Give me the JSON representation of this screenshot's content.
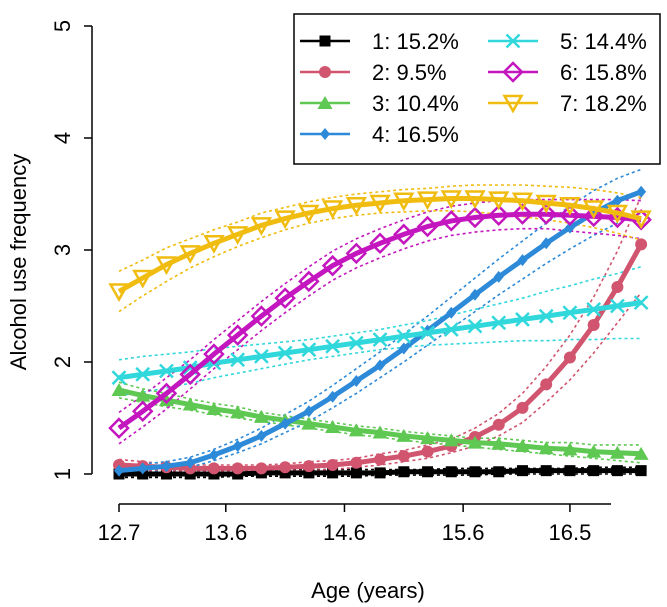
{
  "chart_data": {
    "type": "line",
    "title": "",
    "xlabel": "Age (years)",
    "ylabel": "Alcohol use frequency",
    "xlim": [
      12.7,
      17.2
    ],
    "ylim": [
      1,
      5
    ],
    "x_ticks": [
      "12.7",
      "13.6",
      "14.6",
      "15.6",
      "16.5"
    ],
    "x_tick_values": [
      12.7,
      13.6,
      14.6,
      15.6,
      16.5
    ],
    "y_ticks": [
      "1",
      "2",
      "3",
      "4",
      "5"
    ],
    "y_tick_values": [
      1,
      2,
      3,
      4,
      5
    ],
    "grid": false,
    "legend_position": "top-right",
    "x": [
      12.7,
      12.9,
      13.1,
      13.3,
      13.5,
      13.7,
      13.9,
      14.1,
      14.3,
      14.5,
      14.7,
      14.9,
      15.1,
      15.3,
      15.5,
      15.7,
      15.9,
      16.1,
      16.3,
      16.5,
      16.7,
      16.9,
      17.1
    ],
    "series": [
      {
        "name": "1: 15.2%",
        "color": "#000000",
        "marker": "square",
        "values": [
          1.0,
          1.0,
          1.0,
          1.0,
          1.0,
          1.0,
          1.01,
          1.01,
          1.01,
          1.01,
          1.01,
          1.01,
          1.02,
          1.02,
          1.02,
          1.02,
          1.02,
          1.03,
          1.03,
          1.03,
          1.03,
          1.03,
          1.03
        ],
        "lower": [
          0.97,
          0.97,
          0.97,
          0.97,
          0.97,
          0.98,
          0.98,
          0.98,
          0.98,
          0.98,
          0.98,
          0.99,
          0.99,
          0.99,
          0.99,
          0.99,
          1.0,
          1.0,
          1.0,
          1.0,
          1.0,
          1.0,
          1.0
        ],
        "upper": [
          1.03,
          1.03,
          1.03,
          1.03,
          1.03,
          1.03,
          1.03,
          1.04,
          1.04,
          1.04,
          1.04,
          1.04,
          1.04,
          1.04,
          1.05,
          1.05,
          1.05,
          1.05,
          1.05,
          1.05,
          1.06,
          1.06,
          1.06
        ]
      },
      {
        "name": "2: 9.5%",
        "color": "#d1556e",
        "marker": "circle",
        "values": [
          1.08,
          1.07,
          1.06,
          1.05,
          1.05,
          1.05,
          1.05,
          1.06,
          1.07,
          1.08,
          1.1,
          1.13,
          1.16,
          1.2,
          1.25,
          1.33,
          1.44,
          1.59,
          1.8,
          2.04,
          2.33,
          2.67,
          3.05
        ],
        "lower": [
          1.03,
          1.03,
          1.03,
          1.02,
          1.02,
          1.02,
          1.02,
          1.03,
          1.03,
          1.04,
          1.06,
          1.08,
          1.11,
          1.14,
          1.19,
          1.25,
          1.34,
          1.46,
          1.64,
          1.84,
          2.08,
          2.35,
          2.62
        ],
        "upper": [
          1.13,
          1.11,
          1.09,
          1.08,
          1.08,
          1.08,
          1.08,
          1.09,
          1.11,
          1.12,
          1.14,
          1.18,
          1.21,
          1.26,
          1.31,
          1.41,
          1.54,
          1.72,
          1.96,
          2.24,
          2.58,
          2.99,
          3.48
        ]
      },
      {
        "name": "3: 10.4%",
        "color": "#5fc853",
        "marker": "triangle",
        "values": [
          1.75,
          1.7,
          1.66,
          1.62,
          1.58,
          1.55,
          1.51,
          1.48,
          1.45,
          1.42,
          1.39,
          1.37,
          1.34,
          1.32,
          1.3,
          1.28,
          1.27,
          1.25,
          1.23,
          1.22,
          1.2,
          1.19,
          1.18
        ],
        "lower": [
          1.68,
          1.64,
          1.6,
          1.57,
          1.53,
          1.5,
          1.47,
          1.44,
          1.41,
          1.38,
          1.35,
          1.33,
          1.3,
          1.28,
          1.26,
          1.24,
          1.22,
          1.2,
          1.18,
          1.16,
          1.14,
          1.12,
          1.1
        ],
        "upper": [
          1.82,
          1.76,
          1.72,
          1.67,
          1.63,
          1.6,
          1.55,
          1.52,
          1.49,
          1.46,
          1.43,
          1.41,
          1.38,
          1.36,
          1.34,
          1.32,
          1.32,
          1.3,
          1.28,
          1.28,
          1.26,
          1.26,
          1.26
        ]
      },
      {
        "name": "4: 16.5%",
        "color": "#2d8ad8",
        "marker": "diamond",
        "values": [
          1.03,
          1.05,
          1.07,
          1.1,
          1.17,
          1.25,
          1.34,
          1.45,
          1.56,
          1.69,
          1.83,
          1.97,
          2.12,
          2.28,
          2.44,
          2.6,
          2.76,
          2.91,
          3.06,
          3.2,
          3.33,
          3.44,
          3.52
        ],
        "lower": [
          1.0,
          1.01,
          1.03,
          1.06,
          1.12,
          1.19,
          1.27,
          1.37,
          1.47,
          1.59,
          1.72,
          1.86,
          2.0,
          2.15,
          2.3,
          2.45,
          2.6,
          2.74,
          2.88,
          3.01,
          3.13,
          3.24,
          3.33
        ],
        "upper": [
          1.07,
          1.09,
          1.11,
          1.15,
          1.22,
          1.31,
          1.41,
          1.53,
          1.65,
          1.79,
          1.94,
          2.09,
          2.25,
          2.41,
          2.58,
          2.75,
          2.92,
          3.08,
          3.24,
          3.39,
          3.53,
          3.64,
          3.72
        ]
      },
      {
        "name": "5: 14.4%",
        "color": "#30d7db",
        "marker": "x",
        "values": [
          1.86,
          1.89,
          1.92,
          1.95,
          1.99,
          2.02,
          2.05,
          2.08,
          2.11,
          2.14,
          2.17,
          2.2,
          2.23,
          2.26,
          2.29,
          2.32,
          2.35,
          2.38,
          2.41,
          2.44,
          2.47,
          2.5,
          2.53
        ],
        "lower": [
          1.7,
          1.73,
          1.77,
          1.81,
          1.86,
          1.9,
          1.94,
          1.98,
          2.02,
          2.05,
          2.08,
          2.11,
          2.13,
          2.15,
          2.16,
          2.17,
          2.18,
          2.19,
          2.19,
          2.2,
          2.2,
          2.21,
          2.21
        ],
        "upper": [
          2.02,
          2.05,
          2.07,
          2.09,
          2.12,
          2.14,
          2.16,
          2.18,
          2.2,
          2.23,
          2.26,
          2.29,
          2.33,
          2.37,
          2.42,
          2.47,
          2.52,
          2.57,
          2.63,
          2.68,
          2.74,
          2.79,
          2.85
        ]
      },
      {
        "name": "6: 15.8%",
        "color": "#c416bf",
        "marker": "diamond-open",
        "values": [
          1.41,
          1.56,
          1.72,
          1.89,
          2.07,
          2.24,
          2.41,
          2.57,
          2.72,
          2.86,
          2.97,
          3.06,
          3.14,
          3.21,
          3.26,
          3.29,
          3.31,
          3.32,
          3.32,
          3.31,
          3.3,
          3.29,
          3.27
        ],
        "lower": [
          1.27,
          1.42,
          1.58,
          1.76,
          1.94,
          2.11,
          2.28,
          2.44,
          2.59,
          2.73,
          2.84,
          2.93,
          3.01,
          3.08,
          3.13,
          3.16,
          3.18,
          3.19,
          3.19,
          3.17,
          3.15,
          3.13,
          3.1
        ],
        "upper": [
          1.55,
          1.7,
          1.86,
          2.02,
          2.2,
          2.37,
          2.54,
          2.7,
          2.85,
          2.99,
          3.1,
          3.19,
          3.27,
          3.34,
          3.39,
          3.42,
          3.44,
          3.45,
          3.45,
          3.45,
          3.45,
          3.45,
          3.44
        ]
      },
      {
        "name": "7: 18.2%",
        "color": "#f0bc0f",
        "marker": "triangle-down-open",
        "values": [
          2.63,
          2.75,
          2.87,
          2.97,
          3.06,
          3.14,
          3.22,
          3.28,
          3.33,
          3.37,
          3.4,
          3.42,
          3.44,
          3.45,
          3.46,
          3.46,
          3.45,
          3.44,
          3.42,
          3.4,
          3.37,
          3.33,
          3.28
        ],
        "lower": [
          2.45,
          2.59,
          2.72,
          2.84,
          2.94,
          3.03,
          3.11,
          3.18,
          3.24,
          3.28,
          3.31,
          3.33,
          3.34,
          3.35,
          3.35,
          3.34,
          3.32,
          3.3,
          3.27,
          3.24,
          3.2,
          3.15,
          3.09
        ],
        "upper": [
          2.81,
          2.91,
          3.02,
          3.1,
          3.18,
          3.25,
          3.33,
          3.38,
          3.43,
          3.47,
          3.5,
          3.52,
          3.54,
          3.55,
          3.57,
          3.58,
          3.58,
          3.58,
          3.57,
          3.56,
          3.54,
          3.51,
          3.47
        ]
      }
    ]
  }
}
